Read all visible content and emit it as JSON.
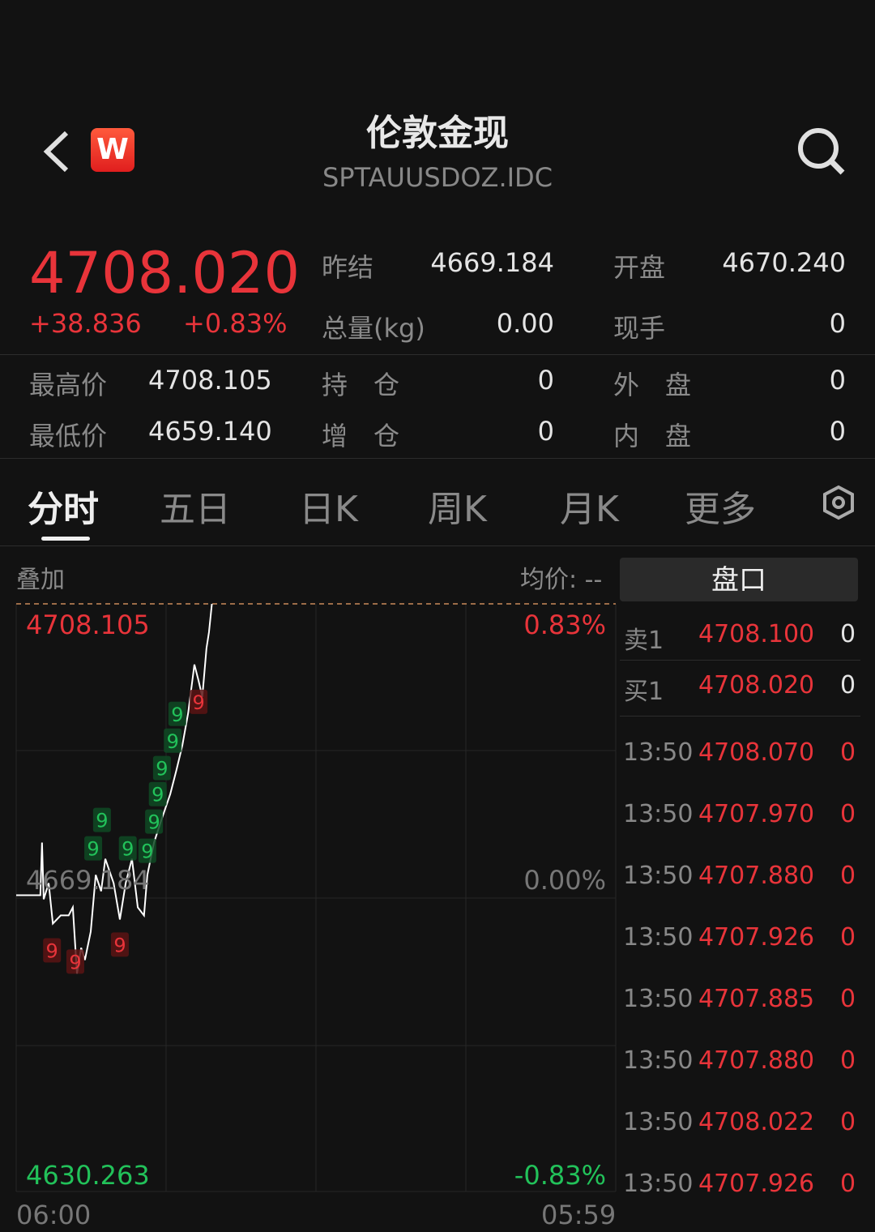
{
  "header": {
    "title": "伦敦金现",
    "symbol": "SPTAUUSDOZ.IDC",
    "logo": "W",
    "back_icon": "chevron-left-icon",
    "search_icon": "search-icon"
  },
  "quote": {
    "price": "4708.020",
    "change": "+38.836",
    "change_pct": "+0.83%",
    "stats": [
      {
        "label": "昨结",
        "value": "4669.184"
      },
      {
        "label": "开盘",
        "value": "4670.240"
      },
      {
        "label": "总量(kg)",
        "value": "0.00"
      },
      {
        "label": "现手",
        "value": "0"
      },
      {
        "label": "最高价",
        "value": "4708.105"
      },
      {
        "label": "持　仓",
        "value": "0"
      },
      {
        "label": "外　盘",
        "value": "0"
      },
      {
        "label": "最低价",
        "value": "4659.140"
      },
      {
        "label": "增　仓",
        "value": "0"
      },
      {
        "label": "内　盘",
        "value": "0"
      }
    ]
  },
  "tabs": [
    {
      "label": "分时",
      "active": true
    },
    {
      "label": "五日"
    },
    {
      "label": "日K"
    },
    {
      "label": "周K"
    },
    {
      "label": "月K"
    },
    {
      "label": "更多"
    }
  ],
  "chart_toolbar": {
    "overlay": "叠加",
    "avg_price": "均价: --"
  },
  "colors": {
    "up": "#e8343a",
    "down": "#22c25a",
    "line": "#ffffff",
    "bg": "#121212"
  },
  "chart_data": {
    "type": "line",
    "y_labels": {
      "high": "4708.105",
      "mid": "4669.184",
      "low": "4630.263",
      "high_pct": "0.83%",
      "mid_pct": "0.00%",
      "low_pct": "-0.83%"
    },
    "x_labels": {
      "start": "06:00",
      "end": "05:59"
    },
    "ylim": [
      4630.263,
      4708.105
    ],
    "grid": true,
    "series": [
      {
        "points": [
          [
            "06:00",
            4669.5
          ],
          [
            "06:58",
            4669.5
          ],
          [
            "07:02",
            4676.48
          ],
          [
            "07:06",
            4668.97
          ],
          [
            "07:18",
            4671.11
          ],
          [
            "07:28",
            4665.75
          ],
          [
            "07:47",
            4666.83
          ],
          [
            "08:06",
            4666.83
          ],
          [
            "08:16",
            4667.9
          ],
          [
            "08:26",
            4659.14
          ],
          [
            "08:36",
            4662.54
          ],
          [
            "08:45",
            4660.93
          ],
          [
            "08:59",
            4664.68
          ],
          [
            "09:11",
            4672.19
          ],
          [
            "09:24",
            4670.04
          ],
          [
            "09:34",
            4674.33
          ],
          [
            "09:54",
            4671.11
          ],
          [
            "10:09",
            4666.29
          ],
          [
            "10:23",
            4671.11
          ],
          [
            "10:38",
            4674.33
          ],
          [
            "10:52",
            4667.9
          ],
          [
            "11:07",
            4666.83
          ],
          [
            "11:15",
            4672.19
          ],
          [
            "11:31",
            4676.48
          ],
          [
            "11:50",
            4679.69
          ],
          [
            "12:10",
            4682.91
          ],
          [
            "12:25",
            4686.12
          ],
          [
            "12:39",
            4689.34
          ],
          [
            "12:53",
            4693.63
          ],
          [
            "13:08",
            4700.06
          ],
          [
            "13:18",
            4697.92
          ],
          [
            "13:27",
            4695.78
          ],
          [
            "13:37",
            4702.21
          ],
          [
            "13:43",
            4704.35
          ],
          [
            "13:50",
            4708.1
          ]
        ]
      }
    ],
    "markers": [
      {
        "t": "07:26",
        "p": 4662.21,
        "label": "9",
        "dir": "up"
      },
      {
        "t": "08:22",
        "p": 4660.71,
        "label": "9",
        "dir": "up"
      },
      {
        "t": "10:09",
        "p": 4662.97,
        "label": "9",
        "dir": "up"
      },
      {
        "t": "13:18",
        "p": 4695.13,
        "label": "9",
        "dir": "up"
      },
      {
        "t": "09:05",
        "p": 4675.72,
        "label": "9",
        "dir": "down"
      },
      {
        "t": "09:26",
        "p": 4675.18,
        "label": "9",
        "dir": "down"
      },
      {
        "t": "10:28",
        "p": 4675.72,
        "label": "9",
        "dir": "down"
      },
      {
        "t": "11:15",
        "p": 4675.4,
        "label": "9",
        "dir": "down"
      },
      {
        "t": "11:31",
        "p": 4678.4,
        "label": "9",
        "dir": "down"
      },
      {
        "t": "11:40",
        "p": 4679.9,
        "label": "9",
        "dir": "down"
      },
      {
        "t": "11:50",
        "p": 4683.34,
        "label": "9",
        "dir": "down"
      },
      {
        "t": "12:16",
        "p": 4686.12,
        "label": "9",
        "dir": "down"
      },
      {
        "t": "12:27",
        "p": 4688.8,
        "label": "9",
        "dir": "down"
      }
    ]
  },
  "orderbook": {
    "title": "盘口",
    "levels": [
      {
        "label": "卖1",
        "price": "4708.100",
        "vol": "0"
      },
      {
        "label": "买1",
        "price": "4708.020",
        "vol": "0"
      }
    ],
    "ticks": [
      {
        "time": "13:50",
        "price": "4708.070",
        "vol": "0"
      },
      {
        "time": "13:50",
        "price": "4707.970",
        "vol": "0"
      },
      {
        "time": "13:50",
        "price": "4707.880",
        "vol": "0"
      },
      {
        "time": "13:50",
        "price": "4707.926",
        "vol": "0"
      },
      {
        "time": "13:50",
        "price": "4707.885",
        "vol": "0"
      },
      {
        "time": "13:50",
        "price": "4707.880",
        "vol": "0"
      },
      {
        "time": "13:50",
        "price": "4708.022",
        "vol": "0"
      },
      {
        "time": "13:50",
        "price": "4707.926",
        "vol": "0"
      }
    ]
  }
}
